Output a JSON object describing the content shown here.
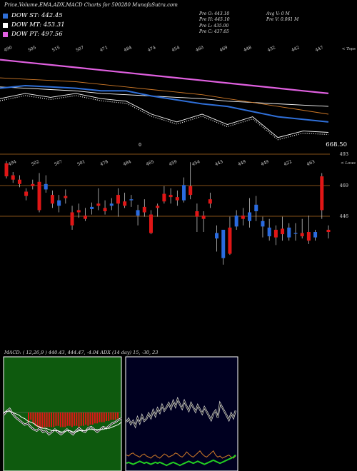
{
  "header": {
    "title": "Price,Volume,EMA,ADX,MACD Charts for 500280  MunafaSutra.com"
  },
  "legend": [
    {
      "label": "DOW ST: 442.45",
      "color": "#2f6fd8"
    },
    {
      "label": "DOW MT: 453.31",
      "color": "#ffffff"
    },
    {
      "label": "DOW PT: 497.56",
      "color": "#e060e0"
    }
  ],
  "stats": {
    "col1": [
      "Pre  O: 443.10",
      "Pre  H: 445.10",
      "Pre  L: 435.00",
      "Pre  C: 437.65"
    ],
    "col2": [
      "Avg V: 0  M",
      "Pre  V: 0.061 M"
    ]
  },
  "macd_caption": "MACD:                    ( 12,26,9 ) 440.43,  444.47,  -4.04 ADX                   (14  day) 15,  -30,  23",
  "colors": {
    "up": "#2a6be0",
    "down": "#e01616",
    "orange": "#d07a28",
    "pink": "#e060e0",
    "green": "#22cc22",
    "macd_bg": "#0e5a0e",
    "adx_bg": "#000020"
  },
  "chart_data": [
    {
      "type": "line",
      "name": "price-ema",
      "x": [
        "490",
        "505",
        "515",
        "507",
        "471",
        "484",
        "474",
        "454",
        "460",
        "469",
        "448",
        "432",
        "442",
        "447"
      ],
      "top_right_label": "< Tops",
      "price_label": "668.50",
      "bottom_marker": "0",
      "series": [
        {
          "color": "#e060e0",
          "values": [
            500,
            498,
            496,
            494,
            492,
            490,
            488,
            486,
            484,
            482,
            480,
            478,
            476,
            474
          ]
        },
        {
          "color": "#ffffff",
          "values": [
            479,
            478,
            477,
            476,
            474,
            473,
            472,
            471,
            470,
            468,
            467,
            466,
            465,
            464
          ]
        },
        {
          "color": "#d07a28",
          "values": [
            486,
            485,
            484,
            483,
            481,
            479,
            477,
            475,
            473,
            470,
            467,
            464,
            461,
            458
          ]
        },
        {
          "color": "#2f6fd8",
          "values": [
            478,
            480,
            479,
            478,
            476,
            476,
            472,
            469,
            466,
            464,
            460,
            456,
            454,
            452
          ]
        },
        {
          "color": "#ffffff",
          "values": [
            470,
            474,
            471,
            474,
            470,
            468,
            458,
            452,
            458,
            450,
            456,
            440,
            445,
            444
          ]
        }
      ]
    },
    {
      "type": "bar",
      "name": "candles",
      "x": [
        "494",
        "502",
        "507",
        "501",
        "478",
        "484",
        "465",
        "459",
        "454",
        "443",
        "449",
        "449",
        "422",
        "463"
      ],
      "top_right_label": "< Lows",
      "h_lines": [
        "493",
        "469",
        "446"
      ],
      "candles": [
        [
          489,
          491,
          475,
          477
        ],
        [
          478,
          481,
          471,
          474
        ],
        [
          474,
          478,
          467,
          470
        ],
        [
          463,
          466,
          455,
          459
        ],
        [
          470,
          474,
          465,
          468
        ],
        [
          472,
          480,
          444,
          446
        ],
        [
          465,
          478,
          462,
          470
        ],
        [
          460,
          464,
          448,
          452
        ],
        [
          450,
          460,
          444,
          455
        ],
        [
          459,
          465,
          452,
          457
        ],
        [
          444,
          450,
          428,
          432
        ],
        [
          446,
          452,
          439,
          444
        ],
        [
          441,
          448,
          436,
          438
        ],
        [
          447,
          453,
          442,
          449
        ],
        [
          452,
          466,
          446,
          450
        ],
        [
          448,
          455,
          442,
          445
        ],
        [
          450,
          457,
          446,
          452
        ],
        [
          460,
          466,
          440,
          452
        ],
        [
          454,
          462,
          448,
          450
        ],
        [
          455,
          460,
          449,
          456
        ],
        [
          441,
          451,
          432,
          446
        ],
        [
          449,
          456,
          440,
          444
        ],
        [
          442,
          446,
          424,
          425
        ],
        [
          450,
          452,
          440,
          448
        ],
        [
          461,
          468,
          452,
          454
        ],
        [
          460,
          466,
          452,
          458
        ],
        [
          458,
          464,
          450,
          455
        ],
        [
          455,
          476,
          453,
          469
        ],
        [
          468,
          490,
          456,
          460
        ],
        [
          445,
          452,
          426,
          440
        ],
        [
          441,
          445,
          426,
          438
        ],
        [
          456,
          462,
          448,
          452
        ],
        [
          420,
          432,
          408,
          425
        ],
        [
          402,
          428,
          396,
          428
        ],
        [
          430,
          440,
          405,
          406
        ],
        [
          431,
          446,
          428,
          441
        ],
        [
          441,
          448,
          432,
          438
        ],
        [
          436,
          457,
          430,
          444
        ],
        [
          445,
          459,
          436,
          451
        ],
        [
          431,
          440,
          421,
          436
        ],
        [
          422,
          438,
          418,
          430
        ],
        [
          428,
          432,
          414,
          421
        ],
        [
          429,
          440,
          418,
          424
        ],
        [
          421,
          434,
          418,
          430
        ],
        [
          425,
          434,
          418,
          425
        ],
        [
          425,
          438,
          420,
          422
        ],
        [
          426,
          441,
          415,
          418
        ],
        [
          421,
          428,
          418,
          426
        ],
        [
          477,
          480,
          438,
          446
        ],
        [
          428,
          432,
          420,
          426
        ]
      ]
    },
    {
      "type": "area",
      "name": "macd",
      "histogram": [
        8,
        6,
        9,
        11,
        12,
        13,
        13,
        12,
        12,
        12,
        12,
        12,
        11,
        11,
        12,
        12,
        12,
        11,
        11,
        12,
        11,
        11,
        12,
        11,
        11,
        10,
        11,
        10,
        10,
        9,
        9,
        8,
        8,
        8,
        7,
        7,
        6,
        6,
        6,
        5
      ],
      "macd_line": [
        -2,
        1,
        3,
        -1,
        -4,
        -6,
        -8,
        -10,
        -9,
        -12,
        -14,
        -15,
        -13,
        -16,
        -15,
        -18,
        -16,
        -14,
        -16,
        -18,
        -16,
        -14,
        -16,
        -18,
        -15,
        -13,
        -15,
        -16,
        -13,
        -12,
        -14,
        -16,
        -14,
        -12,
        -13,
        -11,
        -9,
        -8,
        -6,
        -5
      ],
      "signal_line": [
        0,
        1,
        1,
        0,
        -1,
        -2,
        -4,
        -5,
        -7,
        -8,
        -9,
        -11,
        -12,
        -13,
        -13,
        -14,
        -15,
        -15,
        -15,
        -16,
        -16,
        -15,
        -15,
        -16,
        -16,
        -15,
        -15,
        -15,
        -14,
        -14,
        -14,
        -14,
        -14,
        -14,
        -13,
        -13,
        -12,
        -11,
        -10,
        -8
      ],
      "zero_line_color": "#777"
    },
    {
      "type": "line",
      "name": "adx",
      "series": [
        {
          "color": "#d0d0d0",
          "values": [
            44,
            47,
            42,
            45,
            40,
            48,
            43,
            50,
            45,
            47,
            52,
            48,
            55,
            50,
            57,
            53,
            60,
            55,
            58,
            62,
            57,
            64,
            59,
            66,
            61,
            57,
            64,
            59,
            55,
            62,
            58,
            54,
            60,
            56,
            52,
            58,
            54,
            50,
            46,
            52,
            55,
            48,
            62,
            58,
            54,
            50,
            46,
            52,
            48,
            55
          ]
        },
        {
          "color": "#d07a28",
          "values": [
            12,
            11,
            13,
            14,
            12,
            11,
            10,
            12,
            13,
            11,
            10,
            9,
            11,
            12,
            10,
            9,
            11,
            13,
            12,
            10,
            11,
            12,
            14,
            13,
            11,
            10,
            12,
            15,
            13,
            11,
            10,
            12,
            14,
            16,
            13,
            11,
            10,
            12,
            14,
            16,
            12,
            10,
            11,
            9,
            10,
            11,
            12,
            10,
            9,
            11
          ]
        },
        {
          "color": "#22cc22",
          "values": [
            4,
            5,
            4,
            3,
            4,
            5,
            6,
            5,
            4,
            5,
            4,
            3,
            4,
            5,
            4,
            5,
            4,
            3,
            2,
            3,
            4,
            5,
            4,
            3,
            2,
            3,
            4,
            5,
            6,
            5,
            4,
            5,
            6,
            5,
            4,
            3,
            4,
            5,
            6,
            7,
            6,
            5,
            4,
            5,
            6,
            7,
            8,
            9,
            10,
            12
          ]
        }
      ]
    }
  ]
}
